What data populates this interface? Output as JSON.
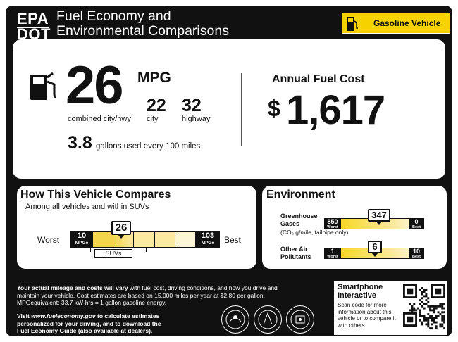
{
  "header": {
    "agency_top": "EPA",
    "agency_bottom": "DOT",
    "title_line1": "Fuel Economy and",
    "title_line2": "Environmental Comparisons",
    "vehicle_type": "Gasoline Vehicle"
  },
  "fuel_economy": {
    "combined_mpg": "26",
    "unit": "MPG",
    "city_mpg": "22",
    "highway_mpg": "32",
    "combined_label": "combined city/hwy",
    "city_label": "city",
    "highway_label": "highway",
    "gallons_per_100": "3.8",
    "gallons_text": "gallons used every 100 miles"
  },
  "annual_fuel_cost": {
    "title": "Annual Fuel Cost",
    "currency": "$",
    "value": "1,617"
  },
  "compare": {
    "title": "How This Vehicle Compares",
    "subtitle": "Among all vehicles and within SUVs",
    "worst_label": "Worst",
    "best_label": "Best",
    "min_value": "10",
    "min_unit": "MPGe",
    "max_value": "103",
    "max_unit": "MPGe",
    "marker_value": "26",
    "marker_fraction": 0.17,
    "class_range_label": "SUVs",
    "highlight_fraction": 0.76
  },
  "environment": {
    "title": "Environment",
    "ghg": {
      "label_line1": "Greenhouse",
      "label_line2": "Gases",
      "sublabel": "(CO₂ g/mile, tailpipe only)",
      "worst_value": "850",
      "worst_label": "Worst",
      "best_value": "0",
      "best_label": "Best",
      "marker_value": "347",
      "marker_fraction": 0.59
    },
    "other": {
      "label_line1": "Other Air",
      "label_line2": "Pollutants",
      "worst_value": "1",
      "worst_label": "Worst",
      "best_value": "10",
      "best_label": "Best",
      "marker_value": "6",
      "marker_fraction": 0.56
    }
  },
  "disclaimer": {
    "bold_lead": "Your actual mileage and costs will vary",
    "rest_line1": " with fuel cost, driving conditions, and how you drive and",
    "line2": "maintain your vehicle. Cost estimates are based on 15,000 miles per year at $2.80 per gallon.",
    "line3": "MPGequivalent: 33.7 kW-hrs = 1 gallon gasoline energy."
  },
  "visit": {
    "line1_prefix": "Visit ",
    "url": "www.fueleconomy.gov",
    "line1_suffix": " to calculate estimates",
    "line2": "personalized for your driving, and to download the",
    "line3": "Fuel Economy Guide (also available at dealers)."
  },
  "smartphone": {
    "title_line1": "Smartphone",
    "title_line2": "Interactive",
    "text": "Scan code for more information about this vehicle or to compare it with others."
  },
  "colors": {
    "label_bg": "#111111",
    "accent_yellow": "#f6d200",
    "scale_light": "#fbeaa0",
    "scale_mid": "#f3d64c"
  },
  "icons": [
    "fuel-pump-icon",
    "qr-code",
    "epa-seal",
    "dot-seal",
    "doe-seal"
  ]
}
